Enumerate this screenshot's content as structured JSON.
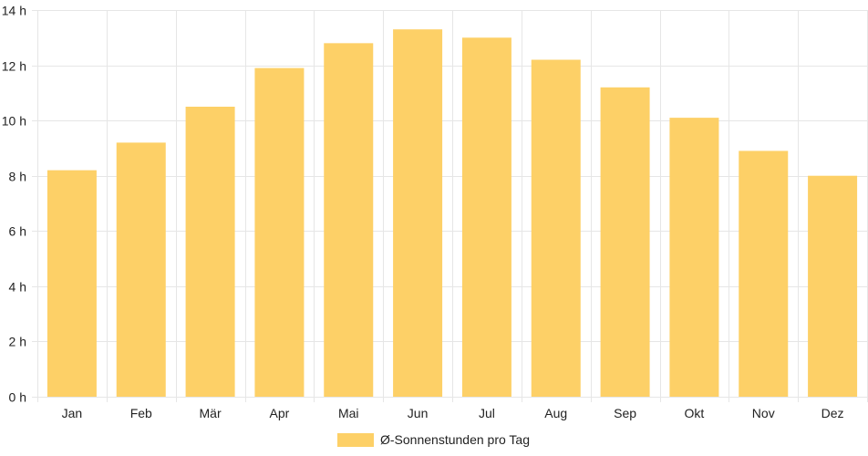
{
  "chart_data": {
    "type": "bar",
    "categories": [
      "Jan",
      "Feb",
      "Mär",
      "Apr",
      "Mai",
      "Jun",
      "Jul",
      "Aug",
      "Sep",
      "Okt",
      "Nov",
      "Dez"
    ],
    "series": [
      {
        "name": "Ø-Sonnenstunden pro Tag",
        "values": [
          8.2,
          9.2,
          10.5,
          11.9,
          12.8,
          13.3,
          13.0,
          12.2,
          11.2,
          10.1,
          8.9,
          8.0
        ],
        "color": "#fdd067"
      }
    ],
    "y_ticks": [
      "0 h",
      "2 h",
      "4 h",
      "6 h",
      "8 h",
      "10 h",
      "12 h",
      "14 h"
    ],
    "ylim": [
      0,
      14
    ],
    "grid": true,
    "legend_position": "bottom"
  },
  "colors": {
    "bar": "#fdd067",
    "grid": "#e6e6e6",
    "text": "#222222"
  }
}
